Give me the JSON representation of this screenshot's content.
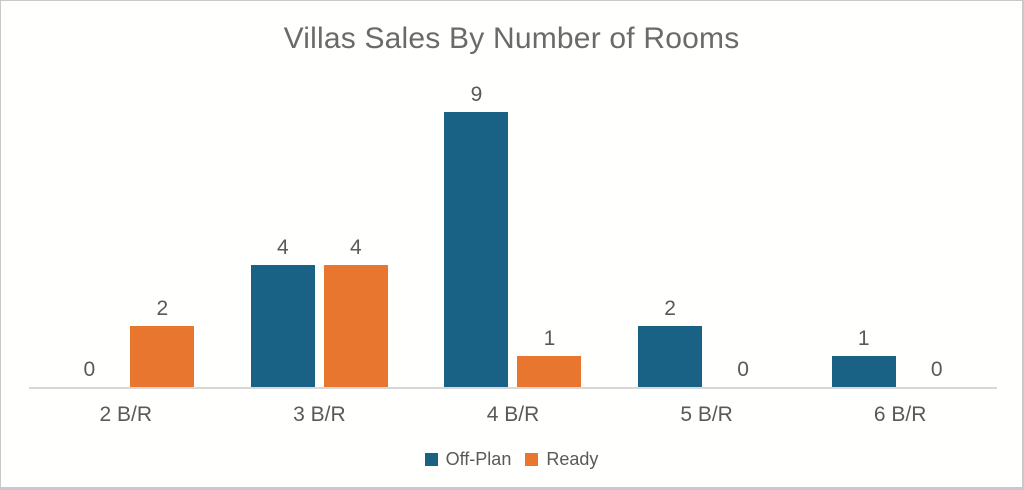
{
  "chart_data": {
    "type": "bar",
    "title": "Villas Sales By Number of Rooms",
    "categories": [
      "2 B/R",
      "3 B/R",
      "4 B/R",
      "5 B/R",
      "6 B/R"
    ],
    "series": [
      {
        "name": "Off-Plan",
        "color": "#196285",
        "values": [
          0,
          4,
          9,
          2,
          1
        ]
      },
      {
        "name": "Ready",
        "color": "#E8762F",
        "values": [
          2,
          4,
          1,
          0,
          0
        ]
      }
    ],
    "ylim": [
      0,
      9
    ],
    "grid": false,
    "y_axis_visible": false,
    "data_labels": true,
    "legend_position": "bottom",
    "axis_line_color": "#D8D8D8",
    "label_color": "#595959",
    "title_color": "#6A6A6A"
  }
}
